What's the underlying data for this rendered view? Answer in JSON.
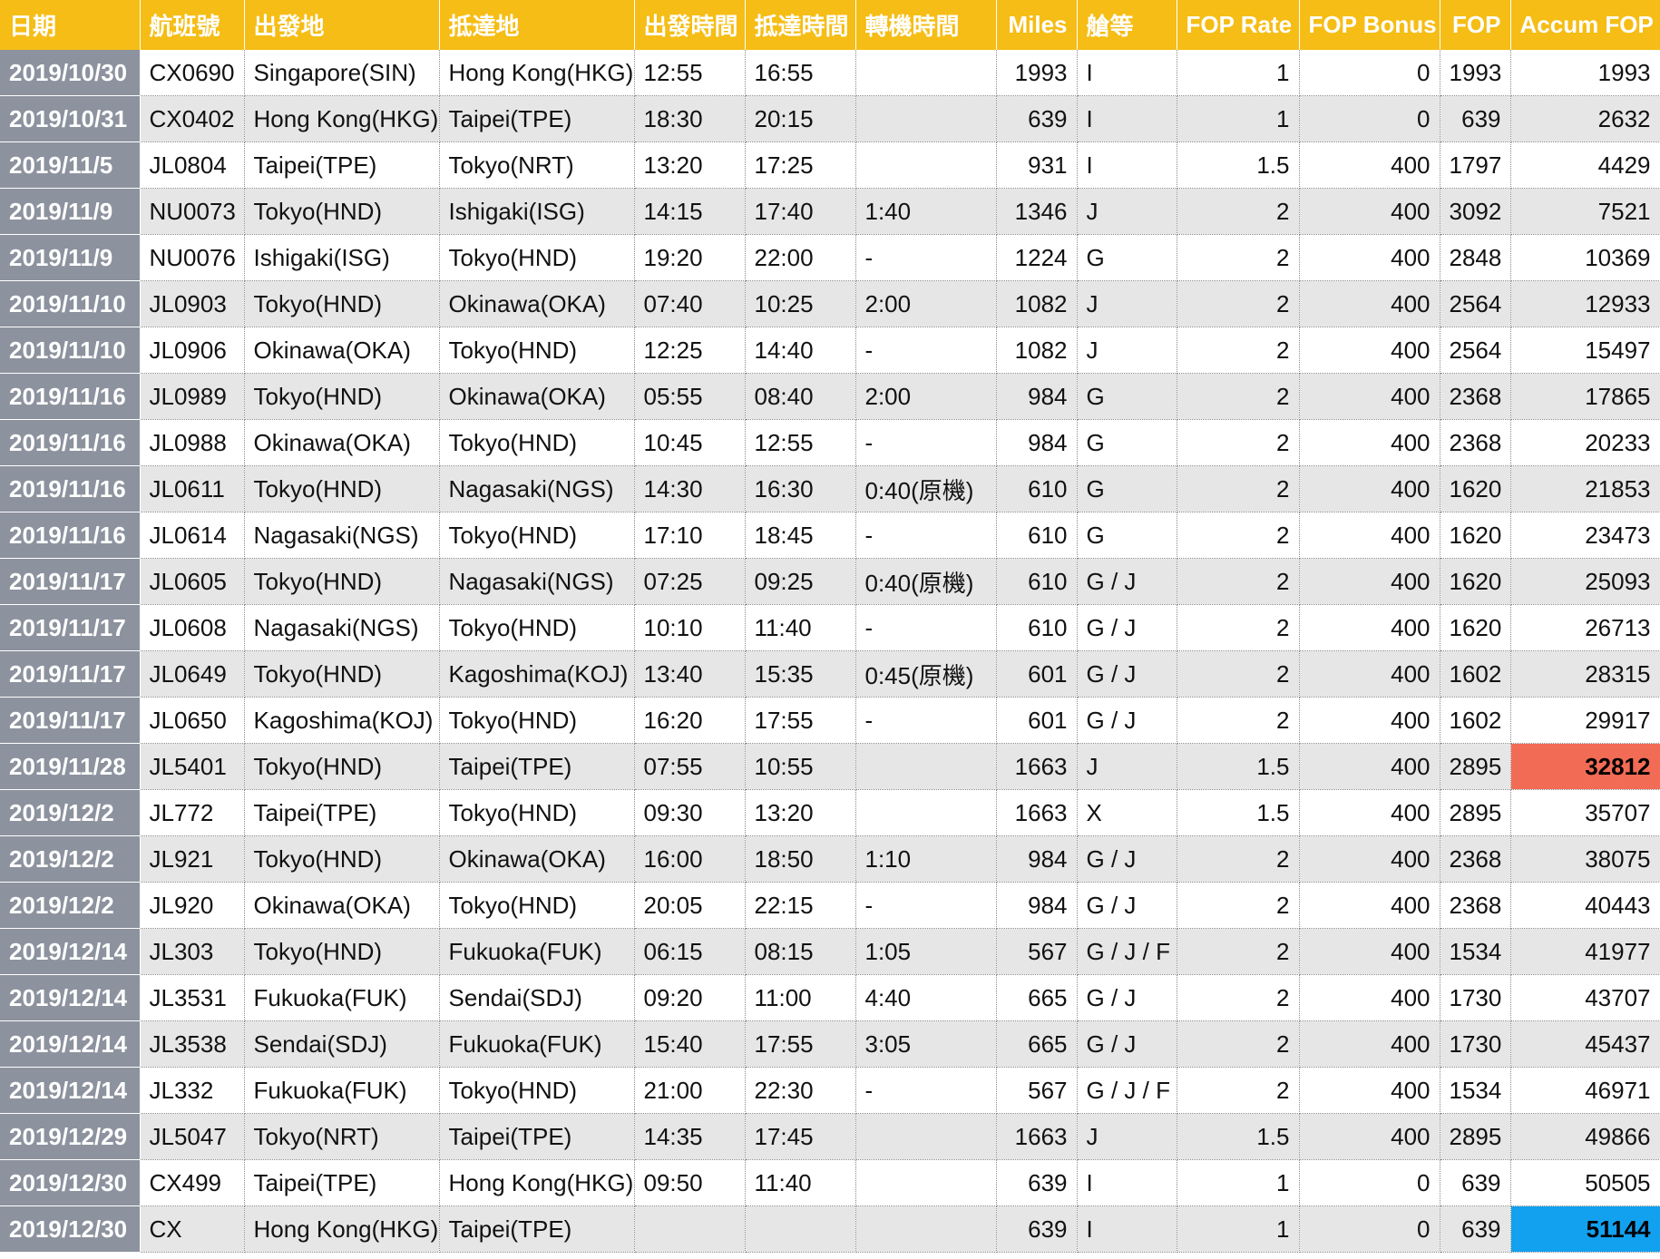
{
  "headers": [
    "日期",
    "航班號",
    "出發地",
    "抵達地",
    "出發時間",
    "抵達時間",
    "轉機時間",
    "Miles",
    "艙等",
    "FOP Rate",
    "FOP Bonus",
    "FOP",
    "Accum FOP"
  ],
  "rows": [
    [
      "2019/10/30",
      "CX0690",
      "Singapore(SIN)",
      "Hong Kong(HKG)",
      "12:55",
      "16:55",
      "",
      "1993",
      "I",
      "1",
      "0",
      "1993",
      "1993"
    ],
    [
      "2019/10/31",
      "CX0402",
      "Hong Kong(HKG)",
      "Taipei(TPE)",
      "18:30",
      "20:15",
      "",
      "639",
      "I",
      "1",
      "0",
      "639",
      "2632"
    ],
    [
      "2019/11/5",
      "JL0804",
      "Taipei(TPE)",
      "Tokyo(NRT)",
      "13:20",
      "17:25",
      "",
      "931",
      "I",
      "1.5",
      "400",
      "1797",
      "4429"
    ],
    [
      "2019/11/9",
      "NU0073",
      "Tokyo(HND)",
      "Ishigaki(ISG)",
      "14:15",
      "17:40",
      "1:40",
      "1346",
      "J",
      "2",
      "400",
      "3092",
      "7521"
    ],
    [
      "2019/11/9",
      "NU0076",
      "Ishigaki(ISG)",
      "Tokyo(HND)",
      "19:20",
      "22:00",
      "-",
      "1224",
      "G",
      "2",
      "400",
      "2848",
      "10369"
    ],
    [
      "2019/11/10",
      "JL0903",
      "Tokyo(HND)",
      "Okinawa(OKA)",
      "07:40",
      "10:25",
      "2:00",
      "1082",
      "J",
      "2",
      "400",
      "2564",
      "12933"
    ],
    [
      "2019/11/10",
      "JL0906",
      "Okinawa(OKA)",
      "Tokyo(HND)",
      "12:25",
      "14:40",
      "-",
      "1082",
      "J",
      "2",
      "400",
      "2564",
      "15497"
    ],
    [
      "2019/11/16",
      "JL0989",
      "Tokyo(HND)",
      "Okinawa(OKA)",
      "05:55",
      "08:40",
      "2:00",
      "984",
      "G",
      "2",
      "400",
      "2368",
      "17865"
    ],
    [
      "2019/11/16",
      "JL0988",
      "Okinawa(OKA)",
      "Tokyo(HND)",
      "10:45",
      "12:55",
      "-",
      "984",
      "G",
      "2",
      "400",
      "2368",
      "20233"
    ],
    [
      "2019/11/16",
      "JL0611",
      "Tokyo(HND)",
      "Nagasaki(NGS)",
      "14:30",
      "16:30",
      "0:40(原機)",
      "610",
      "G",
      "2",
      "400",
      "1620",
      "21853"
    ],
    [
      "2019/11/16",
      "JL0614",
      "Nagasaki(NGS)",
      "Tokyo(HND)",
      "17:10",
      "18:45",
      "-",
      "610",
      "G",
      "2",
      "400",
      "1620",
      "23473"
    ],
    [
      "2019/11/17",
      "JL0605",
      "Tokyo(HND)",
      "Nagasaki(NGS)",
      "07:25",
      "09:25",
      "0:40(原機)",
      "610",
      "G / J",
      "2",
      "400",
      "1620",
      "25093"
    ],
    [
      "2019/11/17",
      "JL0608",
      "Nagasaki(NGS)",
      "Tokyo(HND)",
      "10:10",
      "11:40",
      "-",
      "610",
      "G / J",
      "2",
      "400",
      "1620",
      "26713"
    ],
    [
      "2019/11/17",
      "JL0649",
      "Tokyo(HND)",
      "Kagoshima(KOJ)",
      "13:40",
      "15:35",
      "0:45(原機)",
      "601",
      "G / J",
      "2",
      "400",
      "1602",
      "28315"
    ],
    [
      "2019/11/17",
      "JL0650",
      "Kagoshima(KOJ)",
      "Tokyo(HND)",
      "16:20",
      "17:55",
      "-",
      "601",
      "G / J",
      "2",
      "400",
      "1602",
      "29917"
    ],
    [
      "2019/11/28",
      "JL5401",
      "Tokyo(HND)",
      "Taipei(TPE)",
      "07:55",
      "10:55",
      "",
      "1663",
      "J",
      "1.5",
      "400",
      "2895",
      "32812"
    ],
    [
      "2019/12/2",
      "JL772",
      "Taipei(TPE)",
      "Tokyo(HND)",
      "09:30",
      "13:20",
      "",
      "1663",
      "X",
      "1.5",
      "400",
      "2895",
      "35707"
    ],
    [
      "2019/12/2",
      "JL921",
      "Tokyo(HND)",
      "Okinawa(OKA)",
      "16:00",
      "18:50",
      "1:10",
      "984",
      "G / J",
      "2",
      "400",
      "2368",
      "38075"
    ],
    [
      "2019/12/2",
      "JL920",
      "Okinawa(OKA)",
      "Tokyo(HND)",
      "20:05",
      "22:15",
      "-",
      "984",
      "G / J",
      "2",
      "400",
      "2368",
      "40443"
    ],
    [
      "2019/12/14",
      "JL303",
      "Tokyo(HND)",
      "Fukuoka(FUK)",
      "06:15",
      "08:15",
      "1:05",
      "567",
      "G / J / F",
      "2",
      "400",
      "1534",
      "41977"
    ],
    [
      "2019/12/14",
      "JL3531",
      "Fukuoka(FUK)",
      "Sendai(SDJ)",
      "09:20",
      "11:00",
      "4:40",
      "665",
      "G / J",
      "2",
      "400",
      "1730",
      "43707"
    ],
    [
      "2019/12/14",
      "JL3538",
      "Sendai(SDJ)",
      "Fukuoka(FUK)",
      "15:40",
      "17:55",
      "3:05",
      "665",
      "G / J",
      "2",
      "400",
      "1730",
      "45437"
    ],
    [
      "2019/12/14",
      "JL332",
      "Fukuoka(FUK)",
      "Tokyo(HND)",
      "21:00",
      "22:30",
      "-",
      "567",
      "G / J / F",
      "2",
      "400",
      "1534",
      "46971"
    ],
    [
      "2019/12/29",
      "JL5047",
      "Tokyo(NRT)",
      "Taipei(TPE)",
      "14:35",
      "17:45",
      "",
      "1663",
      "J",
      "1.5",
      "400",
      "2895",
      "49866"
    ],
    [
      "2019/12/30",
      "CX499",
      "Taipei(TPE)",
      "Hong Kong(HKG)",
      "09:50",
      "11:40",
      "",
      "639",
      "I",
      "1",
      "0",
      "639",
      "50505"
    ],
    [
      "2019/12/30",
      "CX",
      "Hong Kong(HKG)",
      "Taipei(TPE)",
      "",
      "",
      "",
      "639",
      "I",
      "1",
      "0",
      "639",
      "51144"
    ]
  ],
  "highlights": {
    "red_accum_row": 15,
    "blue_accum_row": 25,
    "red_color": "#F26B55",
    "blue_color": "#12A1EE"
  },
  "colors": {
    "header_bg": "#F5BD15",
    "date_col_bg": "#8C929E",
    "stripe": "#E6E6E6"
  }
}
